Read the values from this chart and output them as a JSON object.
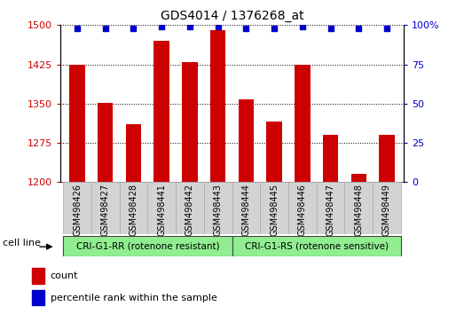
{
  "title": "GDS4014 / 1376268_at",
  "categories": [
    "GSM498426",
    "GSM498427",
    "GSM498428",
    "GSM498441",
    "GSM498442",
    "GSM498443",
    "GSM498444",
    "GSM498445",
    "GSM498446",
    "GSM498447",
    "GSM498448",
    "GSM498449"
  ],
  "bar_values": [
    1425,
    1352,
    1310,
    1470,
    1430,
    1490,
    1358,
    1315,
    1425,
    1290,
    1215,
    1290
  ],
  "percentile_values": [
    98,
    98,
    98,
    99,
    99,
    99,
    98,
    98,
    99,
    98,
    98,
    98
  ],
  "bar_color": "#cc0000",
  "percentile_color": "#0000cc",
  "ylim_left": [
    1200,
    1500
  ],
  "ylim_right": [
    0,
    100
  ],
  "yticks_left": [
    1200,
    1275,
    1350,
    1425,
    1500
  ],
  "yticks_right": [
    0,
    25,
    50,
    75,
    100
  ],
  "groups": [
    {
      "label": "CRI-G1-RR (rotenone resistant)",
      "count": 6,
      "color": "#90ee90"
    },
    {
      "label": "CRI-G1-RS (rotenone sensitive)",
      "count": 6,
      "color": "#90ee90"
    }
  ],
  "group_label": "cell line",
  "legend_count_label": "count",
  "legend_pct_label": "percentile rank within the sample",
  "background_color": "#ffffff",
  "xticklabel_bg": "#d3d3d3",
  "tick_label_color_left": "#cc0000",
  "tick_label_color_right": "#0000cc",
  "grid_color": "#000000",
  "title_fontsize": 10,
  "legend_fontsize": 8
}
